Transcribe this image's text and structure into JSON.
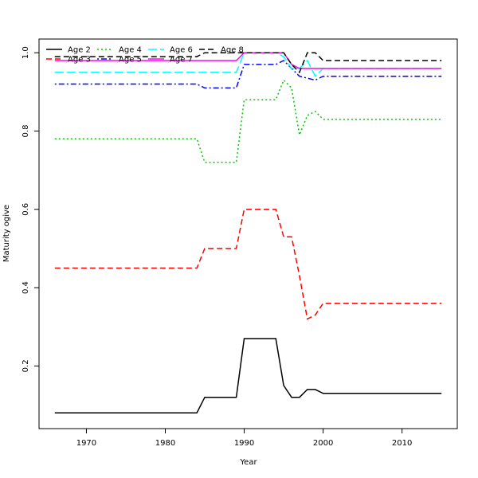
{
  "chart_data": {
    "type": "line",
    "title": "",
    "xlabel": "Year",
    "ylabel": "Maturity ogive",
    "xlim": [
      1964,
      2017
    ],
    "ylim": [
      0.04,
      1.035
    ],
    "xticks": [
      1970,
      1980,
      1990,
      2000,
      2010
    ],
    "yticks": [
      0.2,
      0.4,
      0.6,
      0.8,
      1.0
    ],
    "ytick_labels": [
      "0.2",
      "0.4",
      "0.6",
      "0.8",
      "1.0"
    ],
    "grid": false,
    "legend_position": "top-left",
    "x": [
      1966,
      1967,
      1968,
      1969,
      1970,
      1971,
      1972,
      1973,
      1974,
      1975,
      1976,
      1977,
      1978,
      1979,
      1980,
      1981,
      1982,
      1983,
      1984,
      1985,
      1986,
      1987,
      1988,
      1989,
      1990,
      1991,
      1992,
      1993,
      1994,
      1995,
      1996,
      1997,
      1998,
      1999,
      2000,
      2001,
      2002,
      2003,
      2004,
      2005,
      2006,
      2007,
      2008,
      2009,
      2010,
      2011,
      2012,
      2013,
      2014,
      2015
    ],
    "series": [
      {
        "name": "Age 2",
        "color": "#000000",
        "dash": "solid",
        "values": [
          0.08,
          0.08,
          0.08,
          0.08,
          0.08,
          0.08,
          0.08,
          0.08,
          0.08,
          0.08,
          0.08,
          0.08,
          0.08,
          0.08,
          0.08,
          0.08,
          0.08,
          0.08,
          0.08,
          0.12,
          0.12,
          0.12,
          0.12,
          0.12,
          0.27,
          0.27,
          0.27,
          0.27,
          0.27,
          0.15,
          0.12,
          0.12,
          0.14,
          0.14,
          0.13,
          0.13,
          0.13,
          0.13,
          0.13,
          0.13,
          0.13,
          0.13,
          0.13,
          0.13,
          0.13,
          0.13,
          0.13,
          0.13,
          0.13,
          0.13
        ]
      },
      {
        "name": "Age 3",
        "color": "#ff0000",
        "dash": "dashed",
        "values": [
          0.45,
          0.45,
          0.45,
          0.45,
          0.45,
          0.45,
          0.45,
          0.45,
          0.45,
          0.45,
          0.45,
          0.45,
          0.45,
          0.45,
          0.45,
          0.45,
          0.45,
          0.45,
          0.45,
          0.5,
          0.5,
          0.5,
          0.5,
          0.5,
          0.6,
          0.6,
          0.6,
          0.6,
          0.6,
          0.53,
          0.53,
          0.43,
          0.32,
          0.33,
          0.36,
          0.36,
          0.36,
          0.36,
          0.36,
          0.36,
          0.36,
          0.36,
          0.36,
          0.36,
          0.36,
          0.36,
          0.36,
          0.36,
          0.36,
          0.36
        ]
      },
      {
        "name": "Age 4",
        "color": "#00cd00",
        "dash": "dotted",
        "values": [
          0.78,
          0.78,
          0.78,
          0.78,
          0.78,
          0.78,
          0.78,
          0.78,
          0.78,
          0.78,
          0.78,
          0.78,
          0.78,
          0.78,
          0.78,
          0.78,
          0.78,
          0.78,
          0.78,
          0.72,
          0.72,
          0.72,
          0.72,
          0.72,
          0.88,
          0.88,
          0.88,
          0.88,
          0.88,
          0.93,
          0.91,
          0.79,
          0.84,
          0.85,
          0.83,
          0.83,
          0.83,
          0.83,
          0.83,
          0.83,
          0.83,
          0.83,
          0.83,
          0.83,
          0.83,
          0.83,
          0.83,
          0.83,
          0.83,
          0.83
        ]
      },
      {
        "name": "Age 5",
        "color": "#0000ff",
        "dash": "dotdash",
        "values": [
          0.92,
          0.92,
          0.92,
          0.92,
          0.92,
          0.92,
          0.92,
          0.92,
          0.92,
          0.92,
          0.92,
          0.92,
          0.92,
          0.92,
          0.92,
          0.92,
          0.92,
          0.92,
          0.92,
          0.91,
          0.91,
          0.91,
          0.91,
          0.91,
          0.97,
          0.97,
          0.97,
          0.97,
          0.97,
          0.98,
          0.96,
          0.94,
          0.935,
          0.93,
          0.94,
          0.94,
          0.94,
          0.94,
          0.94,
          0.94,
          0.94,
          0.94,
          0.94,
          0.94,
          0.94,
          0.94,
          0.94,
          0.94,
          0.94,
          0.94
        ]
      },
      {
        "name": "Age 6",
        "color": "#00ffff",
        "dash": "longdash",
        "values": [
          0.95,
          0.95,
          0.95,
          0.95,
          0.95,
          0.95,
          0.95,
          0.95,
          0.95,
          0.95,
          0.95,
          0.95,
          0.95,
          0.95,
          0.95,
          0.95,
          0.95,
          0.95,
          0.95,
          0.95,
          0.95,
          0.95,
          0.95,
          0.95,
          1.0,
          1.0,
          1.0,
          1.0,
          1.0,
          0.99,
          0.96,
          0.96,
          0.98,
          0.94,
          0.96,
          0.96,
          0.96,
          0.96,
          0.96,
          0.96,
          0.96,
          0.96,
          0.96,
          0.96,
          0.96,
          0.96,
          0.96,
          0.96,
          0.96,
          0.96
        ]
      },
      {
        "name": "Age 7",
        "color": "#ff00ff",
        "dash": "solid",
        "values": [
          0.98,
          0.98,
          0.98,
          0.98,
          0.98,
          0.98,
          0.98,
          0.98,
          0.98,
          0.98,
          0.98,
          0.98,
          0.98,
          0.98,
          0.98,
          0.98,
          0.98,
          0.98,
          0.98,
          0.98,
          0.98,
          0.98,
          0.98,
          0.98,
          1.0,
          1.0,
          1.0,
          1.0,
          1.0,
          1.0,
          0.97,
          0.96,
          0.96,
          0.96,
          0.96,
          0.96,
          0.96,
          0.96,
          0.96,
          0.96,
          0.96,
          0.96,
          0.96,
          0.96,
          0.96,
          0.96,
          0.96,
          0.96,
          0.96,
          0.96
        ]
      },
      {
        "name": "Age 8",
        "color": "#000000",
        "dash": "dashed",
        "values": [
          0.99,
          0.99,
          0.99,
          0.99,
          0.99,
          0.99,
          0.99,
          0.99,
          0.99,
          0.99,
          0.99,
          0.99,
          0.99,
          0.99,
          0.99,
          0.99,
          0.99,
          0.99,
          0.99,
          1.0,
          1.0,
          1.0,
          1.0,
          1.0,
          1.0,
          1.0,
          1.0,
          1.0,
          1.0,
          1.0,
          0.97,
          0.95,
          1.0,
          1.0,
          0.98,
          0.98,
          0.98,
          0.98,
          0.98,
          0.98,
          0.98,
          0.98,
          0.98,
          0.98,
          0.98,
          0.98,
          0.98,
          0.98,
          0.98,
          0.98
        ]
      }
    ]
  }
}
